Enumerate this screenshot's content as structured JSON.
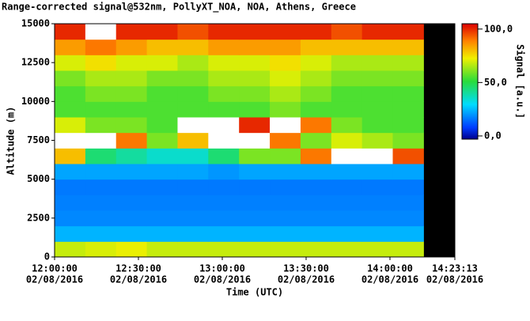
{
  "chart_data": {
    "type": "heatmap",
    "title": "Range-corrected signal@532nm, PollyXT_NOA, NOA, Athens, Greece",
    "x_label": "Time (UTC)",
    "y_label": "Altitude (m)",
    "colorbar_label": "Signal [a.u.]",
    "xlim": [
      "12:00:00",
      "14:23:13"
    ],
    "xticks": [
      "12:00:00",
      "12:30:00",
      "13:00:00",
      "13:30:00",
      "14:00:00",
      "14:23:13"
    ],
    "date": "02/08/2016",
    "ylim": [
      0,
      15000
    ],
    "yticks": [
      0,
      2500,
      5000,
      7500,
      10000,
      12500,
      15000
    ],
    "zlim": [
      -3,
      105
    ],
    "zticks": [
      {
        "value": 0,
        "label": "0,0"
      },
      {
        "value": 50,
        "label": "50,0"
      },
      {
        "value": 100,
        "label": "100,0"
      }
    ],
    "x_edges": [
      "12:00:00",
      "12:11:00",
      "12:22:00",
      "12:33:00",
      "12:44:00",
      "12:55:00",
      "13:06:00",
      "13:17:00",
      "13:28:00",
      "13:39:00",
      "13:50:00",
      "14:01:00",
      "14:12:00"
    ],
    "y_edges": [
      0,
      1000,
      2000,
      3000,
      4000,
      5000,
      6000,
      7000,
      8000,
      9000,
      10000,
      11000,
      12000,
      13000,
      14000,
      15000
    ],
    "values": [
      [
        68,
        70,
        72,
        68,
        68,
        68,
        68,
        68,
        68,
        68,
        68,
        68
      ],
      [
        24,
        24,
        24,
        24,
        24,
        24,
        24,
        24,
        24,
        24,
        24,
        24
      ],
      [
        18,
        18,
        18,
        18,
        18,
        18,
        18,
        18,
        18,
        18,
        18,
        18
      ],
      [
        17,
        17,
        17,
        17,
        17,
        17,
        17,
        17,
        17,
        17,
        17,
        17
      ],
      [
        16,
        16,
        16,
        16,
        16,
        16,
        16,
        16,
        16,
        16,
        16,
        16
      ],
      [
        22,
        22,
        22,
        22,
        22,
        20,
        22,
        22,
        22,
        22,
        22,
        22
      ],
      [
        80,
        45,
        40,
        35,
        35,
        45,
        60,
        60,
        90,
        110,
        110,
        95
      ],
      [
        110,
        110,
        90,
        60,
        80,
        110,
        110,
        90,
        60,
        70,
        65,
        60
      ],
      [
        70,
        60,
        60,
        55,
        110,
        110,
        100,
        110,
        90,
        60,
        55,
        55
      ],
      [
        55,
        55,
        55,
        55,
        55,
        55,
        55,
        60,
        55,
        55,
        55,
        55
      ],
      [
        55,
        60,
        60,
        55,
        55,
        60,
        60,
        65,
        60,
        55,
        55,
        55
      ],
      [
        60,
        65,
        65,
        60,
        60,
        65,
        65,
        70,
        65,
        60,
        60,
        60
      ],
      [
        70,
        75,
        70,
        70,
        65,
        70,
        70,
        75,
        70,
        65,
        65,
        65
      ],
      [
        85,
        90,
        85,
        80,
        80,
        85,
        85,
        85,
        80,
        80,
        80,
        80
      ],
      [
        100,
        110,
        100,
        100,
        95,
        100,
        100,
        100,
        100,
        95,
        100,
        100
      ]
    ]
  }
}
